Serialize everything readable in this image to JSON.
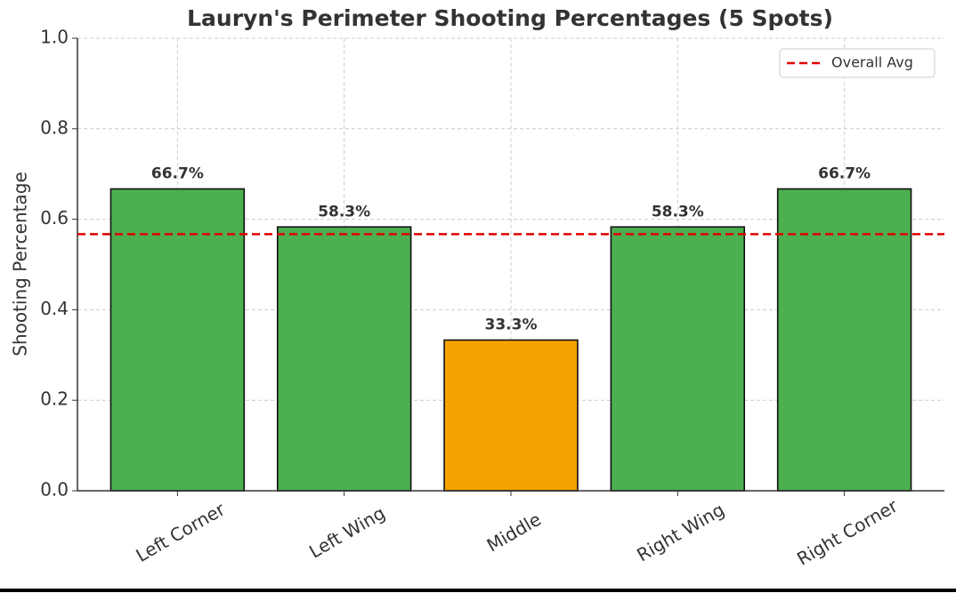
{
  "chart_data": {
    "type": "bar",
    "title": "Lauryn's Perimeter Shooting Percentages (5 Spots)",
    "y_label": "Shooting Percentage",
    "categories": [
      "Left Corner",
      "Left Wing",
      "Middle",
      "Right Wing",
      "Right Corner"
    ],
    "values": [
      0.667,
      0.583,
      0.333,
      0.583,
      0.667
    ],
    "value_labels": [
      "66.7%",
      "58.3%",
      "33.3%",
      "58.3%",
      "66.7%"
    ],
    "colors": [
      "#4caf50",
      "#4caf50",
      "#f4a300",
      "#4caf50",
      "#4caf50"
    ],
    "reference_line": {
      "name": "Overall Avg",
      "value": 0.567,
      "color": "#e00000"
    },
    "ylim": [
      0,
      1
    ],
    "yticks": [
      {
        "value": 0,
        "label": "0.0"
      },
      0.2,
      0.4,
      0.6,
      0.8,
      {
        "value": 1,
        "label": "1.0"
      }
    ],
    "grid": true,
    "legend": "upper right"
  }
}
